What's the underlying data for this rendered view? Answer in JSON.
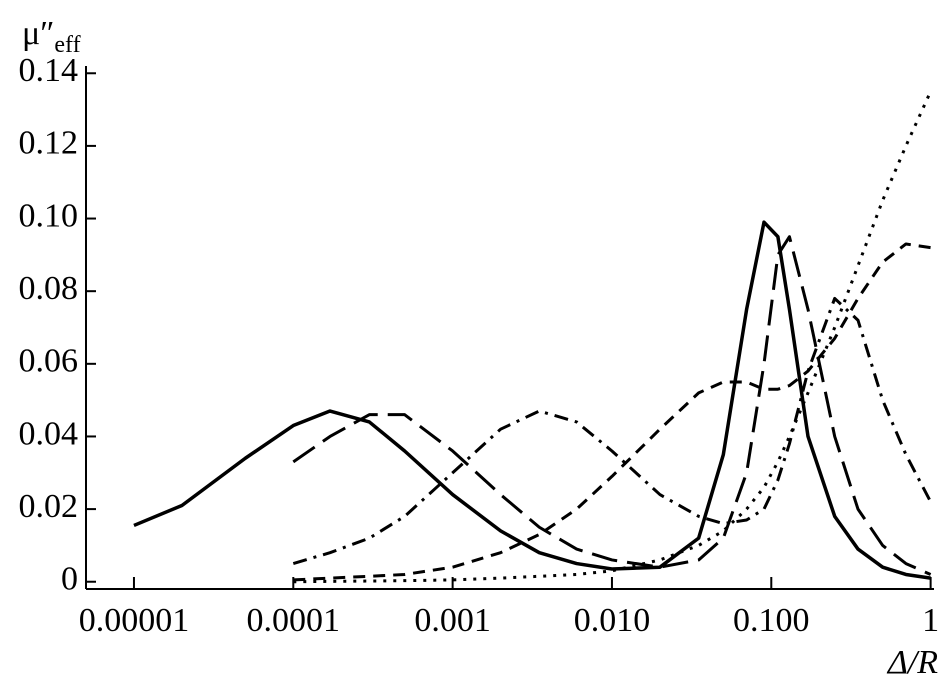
{
  "chart_data": {
    "type": "line",
    "ylabel": {
      "text": "μ″",
      "subscript": "eff"
    },
    "xlabel": "Δ/R",
    "xscale": "log",
    "x": [
      1e-05,
      2e-05,
      5e-05,
      0.0001,
      0.00017,
      0.0003,
      0.0005,
      0.001,
      0.002,
      0.0035,
      0.006,
      0.01,
      0.02,
      0.035,
      0.05,
      0.07,
      0.09,
      0.11,
      0.13,
      0.17,
      0.25,
      0.35,
      0.5,
      0.7,
      1
    ],
    "series": [
      {
        "color": "#000000",
        "dash": "solid",
        "values": [
          0.0155,
          0.021,
          0.034,
          0.043,
          0.047,
          0.044,
          0.036,
          0.024,
          0.014,
          0.008,
          0.005,
          0.0035,
          0.004,
          0.012,
          0.035,
          0.075,
          0.099,
          0.095,
          0.075,
          0.04,
          0.018,
          0.009,
          0.004,
          0.002,
          0.001
        ]
      },
      {
        "color": "#000000",
        "dash": "long",
        "values": [
          null,
          null,
          null,
          0.033,
          0.04,
          0.046,
          0.046,
          0.036,
          0.024,
          0.015,
          0.009,
          0.006,
          0.004,
          0.006,
          0.012,
          0.03,
          0.06,
          0.09,
          0.095,
          0.075,
          0.04,
          0.02,
          0.01,
          0.005,
          0.002
        ]
      },
      {
        "color": "#000000",
        "dash": "dashdot",
        "values": [
          null,
          null,
          null,
          0.005,
          0.008,
          0.012,
          0.018,
          0.03,
          0.042,
          0.047,
          0.044,
          0.036,
          0.024,
          0.018,
          0.016,
          0.017,
          0.02,
          0.028,
          0.038,
          0.058,
          0.078,
          0.072,
          0.05,
          0.035,
          0.022
        ]
      },
      {
        "color": "#000000",
        "dash": "short",
        "values": [
          null,
          null,
          null,
          0.0005,
          0.001,
          0.0015,
          0.002,
          0.004,
          0.008,
          0.013,
          0.02,
          0.029,
          0.042,
          0.052,
          0.055,
          0.055,
          0.053,
          0.053,
          0.054,
          0.058,
          0.067,
          0.078,
          0.088,
          0.093,
          0.092
        ]
      },
      {
        "color": "#000000",
        "dash": "dotted",
        "values": [
          null,
          null,
          null,
          0,
          0.0001,
          0.0002,
          0.0003,
          0.0005,
          0.001,
          0.0015,
          0.002,
          0.003,
          0.006,
          0.01,
          0.014,
          0.02,
          0.026,
          0.033,
          0.04,
          0.052,
          0.07,
          0.087,
          0.105,
          0.12,
          0.135
        ]
      }
    ],
    "xlim": [
      5e-06,
      1.05
    ],
    "ylim": [
      -0.002,
      0.142
    ],
    "xticks": [
      1e-05,
      0.0001,
      0.001,
      {
        "value": 0.01,
        "label": "0.010"
      },
      {
        "value": 0.1,
        "label": "0.100"
      },
      1
    ],
    "yticks": [
      0,
      0.02,
      0.04,
      0.06,
      0.08,
      {
        "value": 0.1,
        "label": "0.10"
      },
      0.12,
      0.14
    ]
  }
}
